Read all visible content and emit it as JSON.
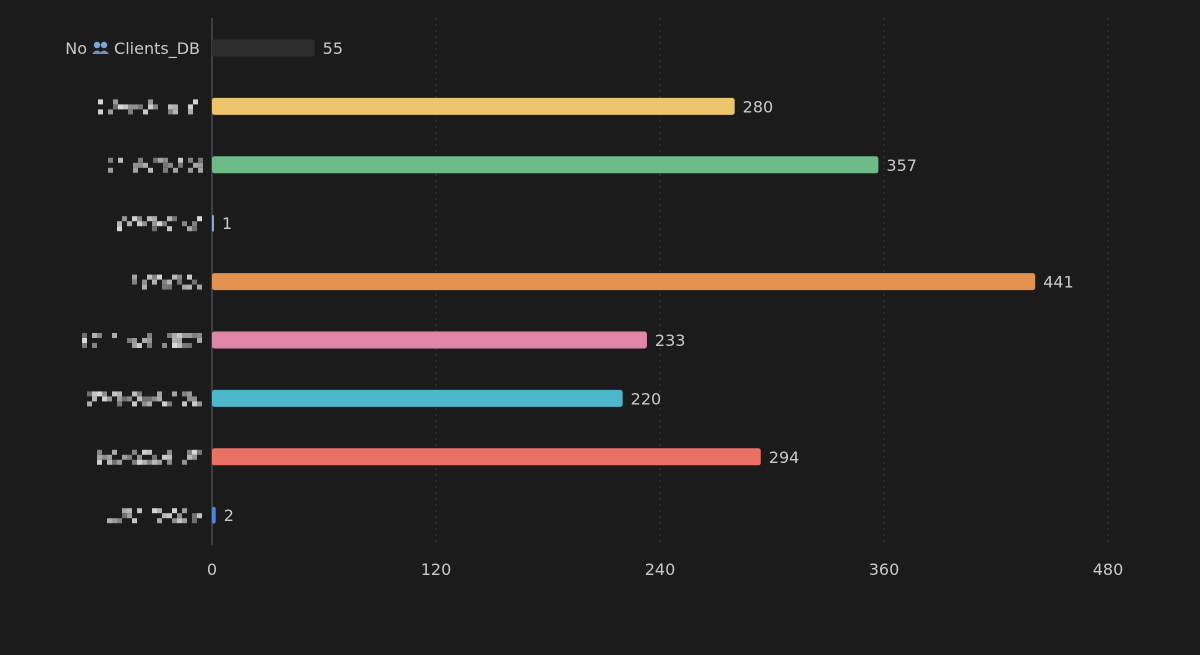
{
  "chart_data": {
    "type": "bar",
    "orientation": "horizontal",
    "categories": [
      {
        "text": "No",
        "icon": "people-icon",
        "suffix": "Clients_DB",
        "redacted": false
      },
      {
        "text": "",
        "redacted": true
      },
      {
        "text": "",
        "redacted": true
      },
      {
        "text": "",
        "redacted": true
      },
      {
        "text": "",
        "redacted": true
      },
      {
        "text": "",
        "redacted": true
      },
      {
        "text": "",
        "redacted": true
      },
      {
        "text": "",
        "redacted": true
      },
      {
        "text": "",
        "redacted": true
      }
    ],
    "values": [
      55,
      280,
      357,
      1,
      441,
      233,
      220,
      294,
      2
    ],
    "colors": [
      "#2e2e2e",
      "#ecc46c",
      "#6dbb87",
      "#8aa7d8",
      "#e4914f",
      "#e086a8",
      "#4db6c9",
      "#ea6f64",
      "#4f86d9"
    ],
    "xlim": [
      0,
      480
    ],
    "xticks": [
      0,
      120,
      240,
      360,
      480
    ],
    "grid": "vertical-dotted",
    "title": "",
    "xlabel": "",
    "ylabel": ""
  }
}
